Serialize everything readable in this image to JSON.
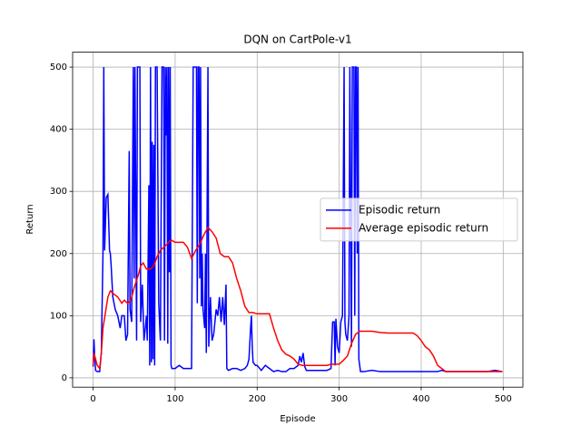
{
  "chart_data": {
    "type": "line",
    "title": "DQN on CartPole-v1",
    "xlabel": "Episode",
    "ylabel": "Return",
    "xlim": [
      -25,
      524
    ],
    "ylim": [
      -15,
      524
    ],
    "xticks": [
      0,
      100,
      200,
      300,
      400,
      500
    ],
    "yticks": [
      0,
      100,
      200,
      300,
      400,
      500
    ],
    "grid": true,
    "legend": "center right",
    "series": [
      {
        "name": "Episodic return",
        "color": "#0000ff",
        "x": [
          0,
          1,
          2,
          3,
          5,
          8,
          10,
          12,
          13,
          14,
          16,
          18,
          20,
          21,
          22,
          24,
          27,
          30,
          33,
          35,
          38,
          40,
          42,
          44,
          45,
          47,
          49,
          50,
          51,
          53,
          54,
          57,
          58,
          60,
          62,
          64,
          65,
          66,
          68,
          69,
          70,
          71,
          72,
          73,
          74,
          75,
          76,
          78,
          80,
          82,
          84,
          86,
          87,
          88,
          89,
          90,
          91,
          92,
          93,
          94,
          95,
          96,
          100,
          105,
          110,
          115,
          120,
          122,
          124,
          126,
          127,
          128,
          129,
          130,
          131,
          132,
          133,
          134,
          136,
          137,
          138,
          140,
          141,
          143,
          145,
          147,
          150,
          152,
          154,
          156,
          158,
          160,
          162,
          163,
          165,
          170,
          175,
          180,
          185,
          188,
          190,
          192,
          193,
          194,
          195,
          198,
          200,
          205,
          210,
          215,
          220,
          225,
          230,
          235,
          240,
          245,
          250,
          252,
          254,
          256,
          258,
          260,
          270,
          280,
          285,
          290,
          292,
          294,
          295,
          296,
          298,
          300,
          302,
          304,
          306,
          307,
          308,
          310,
          312,
          313,
          315,
          316,
          318,
          319,
          320,
          321,
          322,
          323,
          324,
          326,
          330,
          340,
          350,
          360,
          370,
          380,
          390,
          400,
          410,
          420,
          425,
          430,
          440,
          450,
          460,
          470,
          480,
          490,
          499
        ],
        "values": [
          18,
          62,
          30,
          12,
          10,
          10,
          40,
          200,
          500,
          205,
          290,
          295,
          205,
          200,
          180,
          130,
          110,
          100,
          80,
          100,
          100,
          60,
          70,
          365,
          110,
          90,
          500,
          160,
          500,
          60,
          500,
          500,
          90,
          150,
          60,
          85,
          100,
          60,
          310,
          20,
          500,
          25,
          380,
          30,
          375,
          20,
          500,
          500,
          120,
          60,
          500,
          500,
          60,
          500,
          390,
          500,
          55,
          500,
          170,
          500,
          20,
          15,
          15,
          20,
          15,
          15,
          15,
          500,
          500,
          500,
          120,
          500,
          500,
          160,
          500,
          115,
          200,
          110,
          80,
          200,
          40,
          500,
          50,
          130,
          60,
          70,
          110,
          100,
          130,
          90,
          130,
          85,
          150,
          15,
          12,
          15,
          15,
          12,
          15,
          20,
          30,
          80,
          100,
          50,
          25,
          20,
          20,
          12,
          20,
          15,
          10,
          12,
          10,
          10,
          15,
          15,
          20,
          35,
          25,
          40,
          18,
          12,
          12,
          12,
          12,
          15,
          90,
          90,
          20,
          95,
          50,
          40,
          90,
          100,
          500,
          90,
          70,
          60,
          100,
          500,
          50,
          500,
          500,
          100,
          500,
          500,
          200,
          500,
          30,
          10,
          10,
          12,
          10,
          10,
          10,
          10,
          10,
          10,
          10,
          10,
          12,
          10,
          10,
          10,
          10,
          10,
          10,
          12,
          10
        ]
      },
      {
        "name": "Average episodic return",
        "color": "#ff0000",
        "x": [
          0,
          1,
          3,
          5,
          8,
          10,
          12,
          15,
          18,
          21,
          25,
          30,
          35,
          38,
          42,
          46,
          50,
          55,
          58,
          61,
          65,
          70,
          74,
          78,
          82,
          86,
          90,
          95,
          100,
          105,
          110,
          115,
          120,
          125,
          130,
          135,
          140,
          145,
          150,
          155,
          160,
          165,
          170,
          175,
          180,
          185,
          190,
          195,
          200,
          205,
          210,
          215,
          220,
          225,
          230,
          235,
          240,
          245,
          250,
          255,
          260,
          265,
          270,
          275,
          280,
          285,
          290,
          295,
          300,
          305,
          310,
          315,
          320,
          325,
          330,
          340,
          350,
          360,
          370,
          380,
          390,
          395,
          400,
          405,
          410,
          415,
          420,
          425,
          430,
          440,
          450,
          460,
          470,
          480,
          490,
          499
        ],
        "values": [
          20,
          40,
          30,
          20,
          15,
          40,
          80,
          105,
          130,
          140,
          135,
          130,
          120,
          125,
          120,
          125,
          145,
          165,
          180,
          185,
          175,
          175,
          180,
          195,
          205,
          210,
          215,
          222,
          218,
          218,
          218,
          210,
          192,
          205,
          215,
          230,
          242,
          235,
          225,
          200,
          195,
          195,
          185,
          160,
          140,
          115,
          105,
          105,
          103,
          103,
          103,
          103,
          80,
          60,
          45,
          38,
          35,
          30,
          22,
          20,
          20,
          20,
          20,
          20,
          20,
          20,
          22,
          22,
          22,
          28,
          35,
          55,
          70,
          75,
          75,
          75,
          73,
          72,
          72,
          72,
          72,
          68,
          60,
          50,
          45,
          35,
          20,
          15,
          10,
          10,
          10,
          10,
          10,
          10,
          10,
          10
        ]
      }
    ]
  }
}
